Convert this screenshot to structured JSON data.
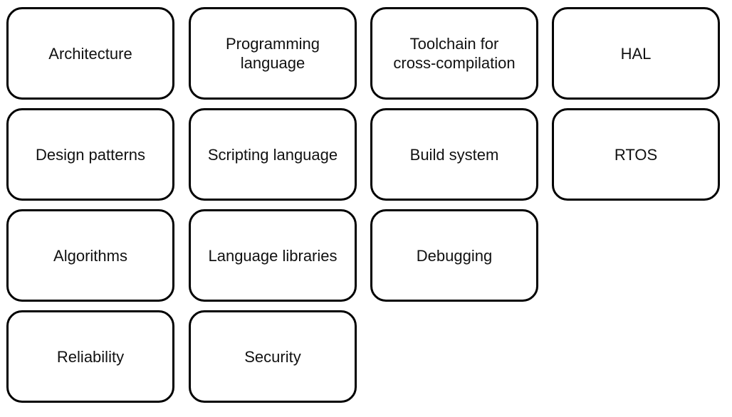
{
  "boxes": {
    "architecture": "Architecture",
    "programming_language": "Programming\nlanguage",
    "toolchain": "Toolchain for\ncross-compilation",
    "hal": "HAL",
    "design_patterns": "Design patterns",
    "scripting_language": "Scripting language",
    "build_system": "Build system",
    "rtos": "RTOS",
    "algorithms": "Algorithms",
    "language_libraries": "Language libraries",
    "debugging": "Debugging",
    "reliability": "Reliability",
    "security": "Security"
  }
}
